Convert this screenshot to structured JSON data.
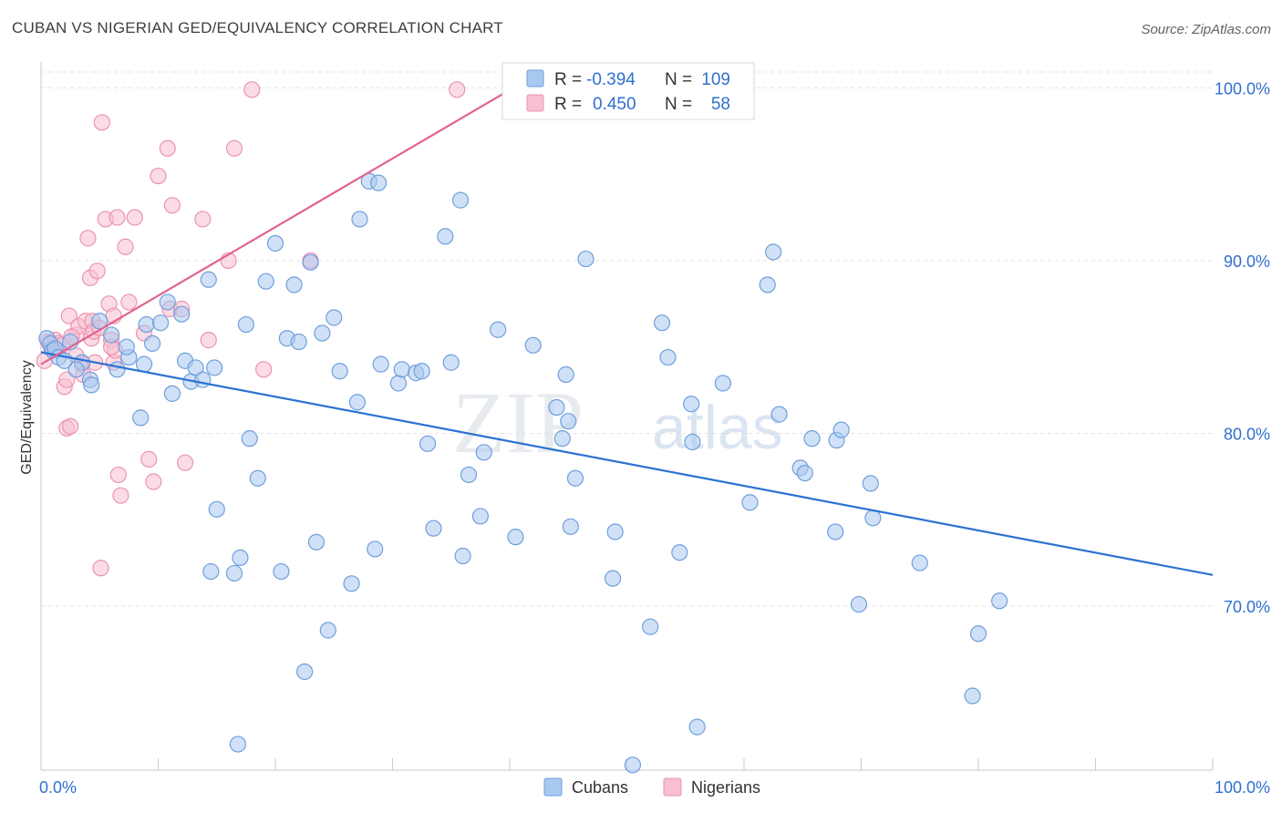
{
  "header": {
    "title": "CUBAN VS NIGERIAN GED/EQUIVALENCY CORRELATION CHART",
    "source": "Source: ZipAtlas.com"
  },
  "watermark": {
    "zip": "ZIP",
    "atlas": "atlas"
  },
  "colors": {
    "cuban_fill": "#a9c8f0",
    "cuban_stroke": "#6f9fdc",
    "cuban_line": "#2c72d4",
    "nigerian_fill": "#f7bfd0",
    "nigerian_stroke": "#ec93b0",
    "nigerian_line": "#e2638f",
    "value_text": "#2f6fd0",
    "label_text": "#333333"
  },
  "legend_stats": {
    "r_label": "R =",
    "n_label": "N =",
    "cubans": {
      "r": "-0.394",
      "n": "109"
    },
    "nigerians": {
      "r": "0.450",
      "n": "58"
    }
  },
  "chart_data": {
    "type": "scatter",
    "title": "CUBAN VS NIGERIAN GED/EQUIVALENCY CORRELATION CHART",
    "xlabel": "",
    "ylabel": "GED/Equivalency",
    "xlim": [
      0,
      100
    ],
    "ylim": [
      60.5,
      101.5
    ],
    "x_tick_labels": [
      "0.0%",
      "100.0%"
    ],
    "y_ticks": [
      70,
      80,
      90,
      100
    ],
    "y_tick_labels": [
      "70.0%",
      "80.0%",
      "90.0%",
      "100.0%"
    ],
    "grid": true,
    "legend": [
      "Cubans",
      "Nigerians"
    ],
    "series": [
      {
        "name": "Cubans",
        "trend": {
          "x": [
            0,
            100
          ],
          "y": [
            84.7,
            71.8
          ]
        },
        "points": [
          [
            0.5,
            85.5
          ],
          [
            0.8,
            85.2
          ],
          [
            1.0,
            84.8
          ],
          [
            1.2,
            84.9
          ],
          [
            1.5,
            84.4
          ],
          [
            2.5,
            85.3
          ],
          [
            3.5,
            84.1
          ],
          [
            3.0,
            83.7
          ],
          [
            4.2,
            83.1
          ],
          [
            4.3,
            82.8
          ],
          [
            6.5,
            83.7
          ],
          [
            7.5,
            84.4
          ],
          [
            7.3,
            85.0
          ],
          [
            8.8,
            84.0
          ],
          [
            9.0,
            86.3
          ],
          [
            9.5,
            85.2
          ],
          [
            8.5,
            80.9
          ],
          [
            10.2,
            86.4
          ],
          [
            10.8,
            87.6
          ],
          [
            12.0,
            86.9
          ],
          [
            12.3,
            84.2
          ],
          [
            11.2,
            82.3
          ],
          [
            12.8,
            83.0
          ],
          [
            13.2,
            83.8
          ],
          [
            13.8,
            83.1
          ],
          [
            14.8,
            83.8
          ],
          [
            14.3,
            88.9
          ],
          [
            17.5,
            86.3
          ],
          [
            17.8,
            79.7
          ],
          [
            18.5,
            77.4
          ],
          [
            19.2,
            88.8
          ],
          [
            20.0,
            91.0
          ],
          [
            21.0,
            85.5
          ],
          [
            21.6,
            88.6
          ],
          [
            22.0,
            85.3
          ],
          [
            23.0,
            89.9
          ],
          [
            24.0,
            85.8
          ],
          [
            25.0,
            86.7
          ],
          [
            25.5,
            83.6
          ],
          [
            27.0,
            81.8
          ],
          [
            27.2,
            92.4
          ],
          [
            28.0,
            94.6
          ],
          [
            28.8,
            94.5
          ],
          [
            29.0,
            84.0
          ],
          [
            30.5,
            82.9
          ],
          [
            30.8,
            83.7
          ],
          [
            32.0,
            83.5
          ],
          [
            32.5,
            83.6
          ],
          [
            33.0,
            79.4
          ],
          [
            34.5,
            91.4
          ],
          [
            35.0,
            84.1
          ],
          [
            35.8,
            93.5
          ],
          [
            36.5,
            77.6
          ],
          [
            37.5,
            75.2
          ],
          [
            37.8,
            78.9
          ],
          [
            40.5,
            74.0
          ],
          [
            42.0,
            85.1
          ],
          [
            44.0,
            81.5
          ],
          [
            44.5,
            79.7
          ],
          [
            44.8,
            83.4
          ],
          [
            45.0,
            80.7
          ],
          [
            45.2,
            74.6
          ],
          [
            45.6,
            77.4
          ],
          [
            46.5,
            90.1
          ],
          [
            48.8,
            71.6
          ],
          [
            49.0,
            74.3
          ],
          [
            50.5,
            60.8
          ],
          [
            52.0,
            68.8
          ],
          [
            53.0,
            86.4
          ],
          [
            53.5,
            84.4
          ],
          [
            54.5,
            73.1
          ],
          [
            55.5,
            81.7
          ],
          [
            55.6,
            79.5
          ],
          [
            56.0,
            63.0
          ],
          [
            58.2,
            82.9
          ],
          [
            60.5,
            76.0
          ],
          [
            62.0,
            88.6
          ],
          [
            62.5,
            90.5
          ],
          [
            63.0,
            81.1
          ],
          [
            64.8,
            78.0
          ],
          [
            65.2,
            77.7
          ],
          [
            65.8,
            79.7
          ],
          [
            67.8,
            74.3
          ],
          [
            67.9,
            79.6
          ],
          [
            68.3,
            80.2
          ],
          [
            69.8,
            70.1
          ],
          [
            70.8,
            77.1
          ],
          [
            71.0,
            75.1
          ],
          [
            75.0,
            72.5
          ],
          [
            79.5,
            64.8
          ],
          [
            80.0,
            68.4
          ],
          [
            81.8,
            70.3
          ],
          [
            15.0,
            75.6
          ],
          [
            14.5,
            72.0
          ],
          [
            16.5,
            71.9
          ],
          [
            17.0,
            72.8
          ],
          [
            20.5,
            72.0
          ],
          [
            23.5,
            73.7
          ],
          [
            24.5,
            68.6
          ],
          [
            26.5,
            71.3
          ],
          [
            28.5,
            73.3
          ],
          [
            22.5,
            66.2
          ],
          [
            36.0,
            72.9
          ],
          [
            16.8,
            62.0
          ],
          [
            33.5,
            74.5
          ],
          [
            39.0,
            86.0
          ],
          [
            6.0,
            85.7
          ],
          [
            5.0,
            86.5
          ],
          [
            2.0,
            84.2
          ]
        ]
      },
      {
        "name": "Nigerians",
        "trend": {
          "x": [
            0,
            40.3
          ],
          "y": [
            84.0,
            100.0
          ]
        },
        "points": [
          [
            0.3,
            84.2
          ],
          [
            0.6,
            85.3
          ],
          [
            0.9,
            84.9
          ],
          [
            1.2,
            85.4
          ],
          [
            1.5,
            85.2
          ],
          [
            2.0,
            82.7
          ],
          [
            2.2,
            83.1
          ],
          [
            2.4,
            86.8
          ],
          [
            2.2,
            80.3
          ],
          [
            2.5,
            80.4
          ],
          [
            3.0,
            85.7
          ],
          [
            3.2,
            86.2
          ],
          [
            3.5,
            84.0
          ],
          [
            3.6,
            83.4
          ],
          [
            3.8,
            86.5
          ],
          [
            4.0,
            91.3
          ],
          [
            4.2,
            89.0
          ],
          [
            4.3,
            85.5
          ],
          [
            4.4,
            86.5
          ],
          [
            4.5,
            85.9
          ],
          [
            4.6,
            84.1
          ],
          [
            4.8,
            89.4
          ],
          [
            5.0,
            86.1
          ],
          [
            5.1,
            72.2
          ],
          [
            5.2,
            98.0
          ],
          [
            5.5,
            92.4
          ],
          [
            5.8,
            87.5
          ],
          [
            6.0,
            85.4
          ],
          [
            6.2,
            86.8
          ],
          [
            6.2,
            84.1
          ],
          [
            6.3,
            84.8
          ],
          [
            6.5,
            92.5
          ],
          [
            6.6,
            77.6
          ],
          [
            6.8,
            76.4
          ],
          [
            7.2,
            90.8
          ],
          [
            7.5,
            87.6
          ],
          [
            8.0,
            92.5
          ],
          [
            8.8,
            85.8
          ],
          [
            9.2,
            78.5
          ],
          [
            9.6,
            77.2
          ],
          [
            10.0,
            94.9
          ],
          [
            10.8,
            96.5
          ],
          [
            11.0,
            87.2
          ],
          [
            11.2,
            93.2
          ],
          [
            12.0,
            87.2
          ],
          [
            12.3,
            78.3
          ],
          [
            13.8,
            92.4
          ],
          [
            14.3,
            85.4
          ],
          [
            16.0,
            90.0
          ],
          [
            16.5,
            96.5
          ],
          [
            18.0,
            99.9
          ],
          [
            19.0,
            83.7
          ],
          [
            23.0,
            90.0
          ],
          [
            35.5,
            99.9
          ],
          [
            6.0,
            85.0
          ],
          [
            3.0,
            84.5
          ],
          [
            2.6,
            85.6
          ],
          [
            1.8,
            85.1
          ]
        ]
      }
    ]
  }
}
